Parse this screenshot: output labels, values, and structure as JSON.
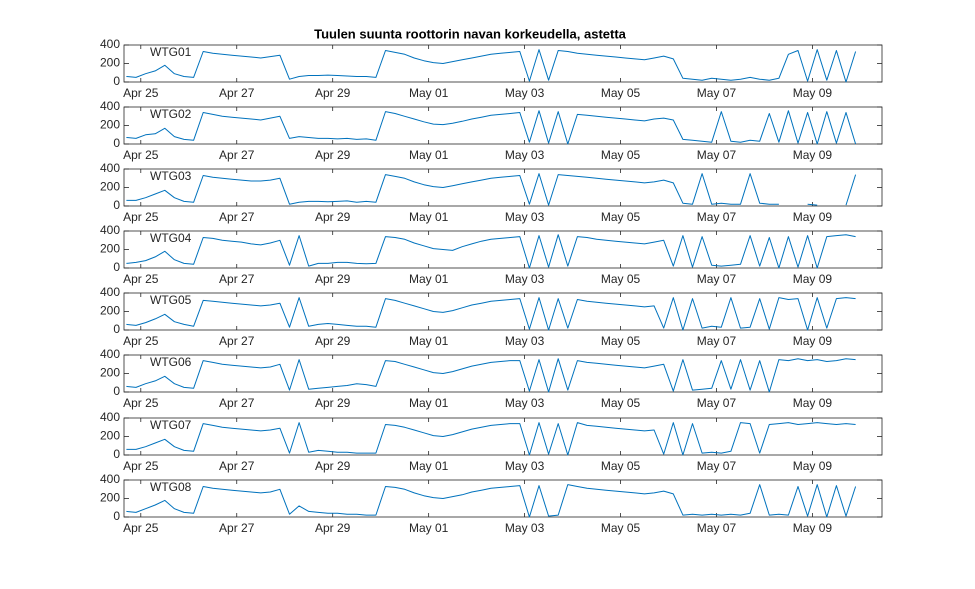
{
  "chart_data": {
    "type": "line",
    "title": "Tuulen suunta roottorin navan korkeudella, astetta",
    "x": [
      -0.3,
      -0.1,
      0.1,
      0.3,
      0.5,
      0.7,
      0.9,
      1.1,
      1.3,
      1.5,
      1.7,
      1.9,
      2.1,
      2.3,
      2.5,
      2.7,
      2.9,
      3.1,
      3.3,
      3.5,
      3.7,
      3.9,
      4.1,
      4.3,
      4.5,
      4.7,
      4.9,
      5.1,
      5.3,
      5.5,
      5.7,
      5.9,
      6.1,
      6.3,
      6.5,
      6.7,
      6.9,
      7.1,
      7.3,
      7.5,
      7.7,
      7.9,
      8.1,
      8.3,
      8.5,
      8.7,
      8.9,
      9.1,
      9.3,
      9.5,
      9.7,
      9.9,
      10.1,
      10.3,
      10.5,
      10.7,
      10.9,
      11.1,
      11.3,
      11.5,
      11.7,
      11.9,
      12.1,
      12.3,
      12.5,
      12.7,
      12.9,
      13.1,
      13.3,
      13.5,
      13.7,
      13.9,
      14.1,
      14.3,
      14.5,
      14.7,
      14.9
    ],
    "xlim": [
      -0.35,
      15.45
    ],
    "xticks": [
      {
        "value": 0,
        "label": "Apr 25"
      },
      {
        "value": 2,
        "label": "Apr 27"
      },
      {
        "value": 4,
        "label": "Apr 29"
      },
      {
        "value": 6,
        "label": "May 01"
      },
      {
        "value": 8,
        "label": "May 03"
      },
      {
        "value": 10,
        "label": "May 05"
      },
      {
        "value": 12,
        "label": "May 07"
      },
      {
        "value": 14,
        "label": "May 09"
      }
    ],
    "ylim": [
      0,
      400
    ],
    "yticks": [
      0,
      200,
      400
    ],
    "series": [
      {
        "name": "WTG01",
        "color": "#0072bd",
        "values": [
          60,
          50,
          90,
          120,
          180,
          90,
          60,
          50,
          330,
          310,
          300,
          290,
          280,
          270,
          260,
          275,
          290,
          30,
          60,
          70,
          70,
          75,
          70,
          65,
          60,
          60,
          50,
          340,
          320,
          300,
          260,
          230,
          210,
          200,
          220,
          240,
          260,
          280,
          300,
          310,
          320,
          330,
          10,
          350,
          20,
          340,
          330,
          310,
          300,
          290,
          280,
          270,
          260,
          250,
          240,
          260,
          280,
          250,
          40,
          30,
          20,
          40,
          30,
          20,
          30,
          50,
          30,
          20,
          40,
          300,
          340,
          10,
          350,
          20,
          340,
          0,
          330
        ]
      },
      {
        "name": "WTG02",
        "color": "#0072bd",
        "values": [
          70,
          60,
          100,
          110,
          170,
          80,
          50,
          40,
          340,
          320,
          300,
          290,
          280,
          270,
          260,
          280,
          300,
          60,
          80,
          70,
          60,
          60,
          55,
          60,
          50,
          55,
          40,
          350,
          330,
          300,
          270,
          240,
          215,
          210,
          225,
          245,
          270,
          290,
          310,
          320,
          330,
          340,
          20,
          360,
          10,
          350,
          0,
          320,
          310,
          300,
          290,
          280,
          270,
          260,
          250,
          270,
          280,
          260,
          50,
          40,
          30,
          20,
          350,
          30,
          20,
          40,
          30,
          330,
          20,
          360,
          10,
          340,
          0,
          350,
          10,
          340,
          0
        ]
      },
      {
        "name": "WTG03",
        "color": "#0072bd",
        "values": [
          60,
          60,
          90,
          130,
          170,
          90,
          50,
          40,
          330,
          310,
          300,
          290,
          280,
          270,
          270,
          280,
          300,
          20,
          40,
          50,
          50,
          45,
          50,
          55,
          40,
          50,
          40,
          340,
          320,
          300,
          260,
          230,
          210,
          200,
          220,
          240,
          260,
          280,
          300,
          310,
          320,
          330,
          20,
          350,
          10,
          340,
          330,
          320,
          310,
          300,
          290,
          280,
          270,
          260,
          250,
          260,
          280,
          250,
          30,
          20,
          350,
          20,
          30,
          20,
          20,
          350,
          30,
          20,
          20,
          null,
          null,
          20,
          10,
          null,
          null,
          10,
          340
        ]
      },
      {
        "name": "WTG04",
        "color": "#0072bd",
        "values": [
          50,
          60,
          80,
          120,
          180,
          90,
          50,
          40,
          330,
          320,
          300,
          290,
          280,
          260,
          250,
          270,
          300,
          30,
          350,
          20,
          50,
          50,
          60,
          60,
          50,
          45,
          50,
          340,
          330,
          310,
          270,
          240,
          210,
          200,
          190,
          230,
          260,
          290,
          310,
          320,
          330,
          340,
          0,
          350,
          10,
          360,
          20,
          340,
          330,
          310,
          300,
          290,
          280,
          270,
          260,
          280,
          300,
          20,
          350,
          10,
          340,
          30,
          20,
          30,
          40,
          350,
          20,
          330,
          0,
          340,
          10,
          350,
          0,
          340,
          350,
          360,
          340
        ]
      },
      {
        "name": "WTG05",
        "color": "#0072bd",
        "values": [
          60,
          50,
          80,
          120,
          170,
          90,
          60,
          40,
          320,
          310,
          300,
          290,
          280,
          270,
          260,
          270,
          290,
          30,
          350,
          40,
          60,
          70,
          60,
          50,
          40,
          40,
          30,
          340,
          320,
          290,
          260,
          230,
          200,
          190,
          210,
          240,
          270,
          290,
          310,
          320,
          330,
          340,
          10,
          350,
          0,
          340,
          20,
          330,
          310,
          300,
          290,
          280,
          270,
          260,
          250,
          260,
          20,
          350,
          0,
          340,
          20,
          40,
          30,
          350,
          20,
          30,
          340,
          10,
          350,
          330,
          340,
          0,
          350,
          20,
          340,
          350,
          340
        ]
      },
      {
        "name": "WTG06",
        "color": "#0072bd",
        "values": [
          60,
          50,
          90,
          120,
          170,
          90,
          50,
          40,
          340,
          320,
          300,
          290,
          280,
          270,
          260,
          270,
          300,
          20,
          350,
          30,
          40,
          50,
          60,
          70,
          90,
          80,
          60,
          340,
          330,
          300,
          270,
          240,
          210,
          200,
          220,
          250,
          280,
          300,
          320,
          330,
          340,
          340,
          10,
          350,
          0,
          360,
          20,
          340,
          320,
          310,
          300,
          290,
          280,
          270,
          260,
          280,
          300,
          10,
          350,
          20,
          30,
          40,
          340,
          30,
          350,
          20,
          340,
          0,
          350,
          340,
          360,
          340,
          350,
          330,
          340,
          360,
          350
        ]
      },
      {
        "name": "WTG07",
        "color": "#0072bd",
        "values": [
          60,
          60,
          90,
          130,
          170,
          90,
          50,
          40,
          340,
          320,
          300,
          290,
          280,
          270,
          260,
          270,
          290,
          20,
          350,
          30,
          50,
          40,
          30,
          30,
          20,
          20,
          20,
          330,
          320,
          300,
          270,
          240,
          210,
          200,
          220,
          250,
          280,
          300,
          320,
          330,
          340,
          340,
          0,
          350,
          10,
          340,
          0,
          350,
          320,
          310,
          300,
          290,
          280,
          270,
          260,
          270,
          10,
          350,
          0,
          340,
          20,
          30,
          20,
          40,
          350,
          340,
          20,
          330,
          340,
          350,
          330,
          340,
          350,
          340,
          330,
          340,
          330
        ]
      },
      {
        "name": "WTG08",
        "color": "#0072bd",
        "values": [
          60,
          50,
          90,
          130,
          180,
          90,
          50,
          40,
          330,
          310,
          300,
          290,
          280,
          270,
          260,
          270,
          300,
          30,
          120,
          60,
          50,
          40,
          40,
          30,
          30,
          20,
          20,
          330,
          320,
          300,
          260,
          230,
          210,
          200,
          220,
          240,
          270,
          290,
          310,
          320,
          330,
          340,
          0,
          340,
          10,
          20,
          350,
          330,
          310,
          300,
          290,
          280,
          270,
          260,
          250,
          260,
          280,
          250,
          20,
          30,
          20,
          30,
          20,
          30,
          20,
          40,
          350,
          20,
          30,
          20,
          330,
          10,
          350,
          0,
          340,
          10,
          330
        ]
      }
    ]
  }
}
